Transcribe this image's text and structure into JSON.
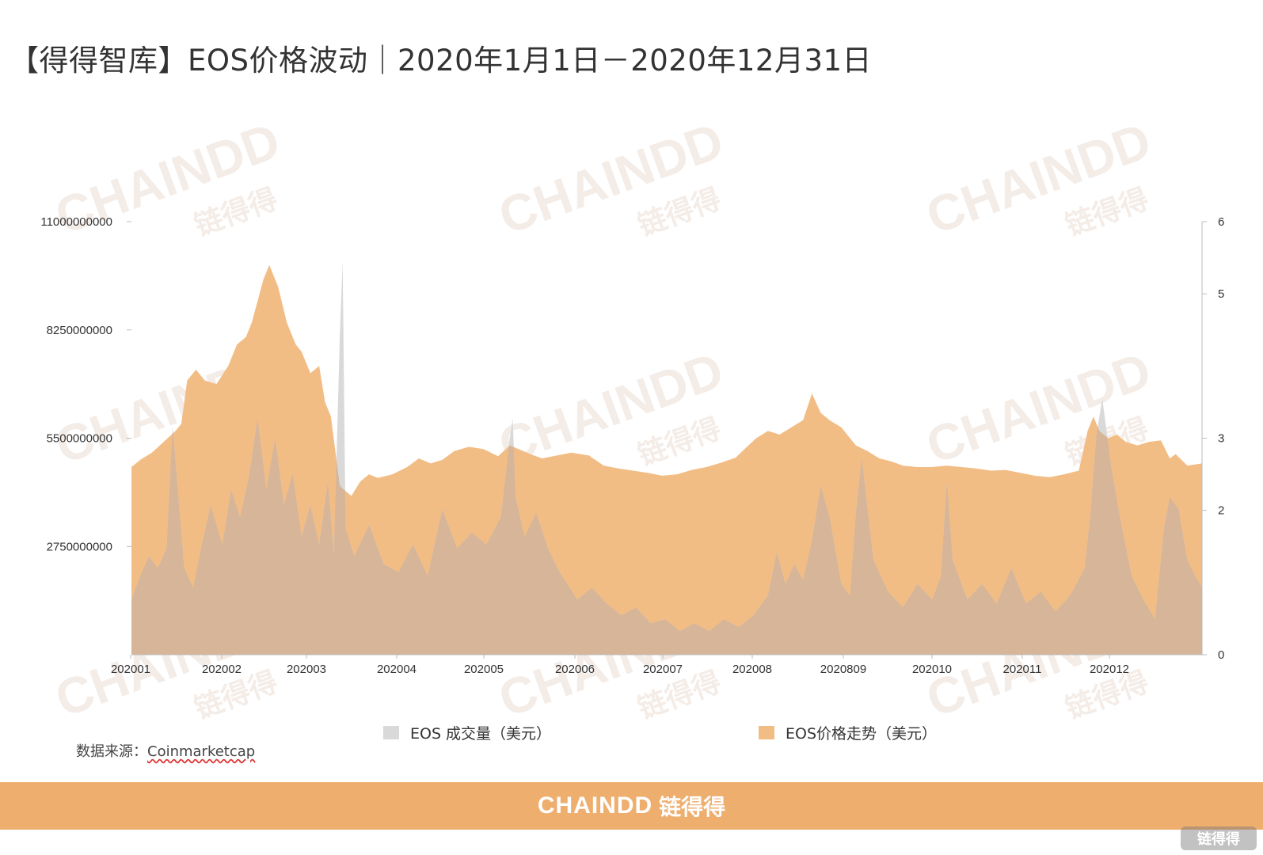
{
  "title": "【得得智库】EOS价格波动｜2020年1月1日－2020年12月31日",
  "source": {
    "label": "数据来源：",
    "name": "Coinmarketcap"
  },
  "footer": {
    "brand": "CHAINDD",
    "brand_cn": "链得得"
  },
  "corner_badge": "链得得",
  "watermark": {
    "latin": "CHAINDD",
    "cn": "链得得"
  },
  "colors": {
    "volume": "#d9d9d9",
    "price": "#f2bd85",
    "overlap": "#d6b598",
    "footer": "#eeae6e"
  },
  "chart_data": {
    "type": "area",
    "x_tick_labels": [
      "202001",
      "202002",
      "202003",
      "202004",
      "202005",
      "202006",
      "202007",
      "202008",
      "2020809",
      "202010",
      "202011",
      "202012"
    ],
    "y_left": {
      "min": 0,
      "max": 11000000000,
      "ticks": [
        "11000000000",
        "8250000000",
        "5500000000",
        "2750000000"
      ]
    },
    "y_right": {
      "min": 0,
      "max": 6,
      "ticks": [
        "6",
        "5",
        "3",
        "2",
        "0"
      ]
    },
    "legend": [
      {
        "label": "EOS 成交量（美元）",
        "color": "#d9d9d9"
      },
      {
        "label": "EOS价格走势（美元）",
        "color": "#f2bd85"
      }
    ],
    "legend_position": "bottom",
    "grid": false,
    "series": [
      {
        "name": "EOS价格走势（美元）",
        "axis": "right",
        "x": [
          "2020-01-01",
          "2020-01-04",
          "2020-01-08",
          "2020-01-12",
          "2020-01-16",
          "2020-01-18",
          "2020-01-20",
          "2020-01-23",
          "2020-01-26",
          "2020-01-30",
          "2020-02-03",
          "2020-02-06",
          "2020-02-09",
          "2020-02-11",
          "2020-02-13",
          "2020-02-15",
          "2020-02-17",
          "2020-02-20",
          "2020-02-23",
          "2020-02-26",
          "2020-02-28",
          "2020-03-02",
          "2020-03-05",
          "2020-03-07",
          "2020-03-09",
          "2020-03-12",
          "2020-03-13",
          "2020-03-16",
          "2020-03-19",
          "2020-03-22",
          "2020-03-25",
          "2020-03-30",
          "2020-04-04",
          "2020-04-08",
          "2020-04-12",
          "2020-04-16",
          "2020-04-20",
          "2020-04-25",
          "2020-04-30",
          "2020-05-05",
          "2020-05-09",
          "2020-05-12",
          "2020-05-16",
          "2020-05-20",
          "2020-05-25",
          "2020-05-30",
          "2020-06-05",
          "2020-06-10",
          "2020-06-15",
          "2020-06-20",
          "2020-06-25",
          "2020-06-30",
          "2020-07-05",
          "2020-07-10",
          "2020-07-15",
          "2020-07-20",
          "2020-07-25",
          "2020-07-28",
          "2020-08-01",
          "2020-08-05",
          "2020-08-09",
          "2020-08-13",
          "2020-08-17",
          "2020-08-20",
          "2020-08-23",
          "2020-08-26",
          "2020-08-30",
          "2020-09-02",
          "2020-09-04",
          "2020-09-08",
          "2020-09-12",
          "2020-09-16",
          "2020-09-20",
          "2020-09-25",
          "2020-09-30",
          "2020-10-05",
          "2020-10-10",
          "2020-10-15",
          "2020-10-20",
          "2020-10-25",
          "2020-10-30",
          "2020-11-04",
          "2020-11-09",
          "2020-11-14",
          "2020-11-19",
          "2020-11-22",
          "2020-11-24",
          "2020-11-26",
          "2020-11-29",
          "2020-12-02",
          "2020-12-05",
          "2020-12-09",
          "2020-12-13",
          "2020-12-17",
          "2020-12-20",
          "2020-12-22",
          "2020-12-26",
          "2020-12-31"
        ],
        "y": [
          2.6,
          2.7,
          2.8,
          2.95,
          3.1,
          3.2,
          3.8,
          3.95,
          3.8,
          3.75,
          4.0,
          4.3,
          4.4,
          4.6,
          4.9,
          5.2,
          5.4,
          5.1,
          4.6,
          4.3,
          4.2,
          3.9,
          4.0,
          3.5,
          3.3,
          2.35,
          2.3,
          2.2,
          2.4,
          2.5,
          2.45,
          2.5,
          2.6,
          2.72,
          2.65,
          2.7,
          2.82,
          2.88,
          2.85,
          2.75,
          2.9,
          2.85,
          2.78,
          2.72,
          2.76,
          2.8,
          2.76,
          2.62,
          2.58,
          2.55,
          2.52,
          2.48,
          2.5,
          2.56,
          2.6,
          2.66,
          2.73,
          2.85,
          3.0,
          3.1,
          3.05,
          3.15,
          3.25,
          3.62,
          3.35,
          3.25,
          3.15,
          3.0,
          2.9,
          2.82,
          2.72,
          2.68,
          2.62,
          2.6,
          2.6,
          2.62,
          2.6,
          2.58,
          2.55,
          2.56,
          2.52,
          2.48,
          2.46,
          2.5,
          2.55,
          3.1,
          3.3,
          3.1,
          3.0,
          3.05,
          2.95,
          2.9,
          2.95,
          2.97,
          2.72,
          2.78,
          2.62,
          2.65
        ]
      },
      {
        "name": "EOS 成交量（美元）",
        "axis": "left",
        "x": [
          "2020-01-01",
          "2020-01-04",
          "2020-01-07",
          "2020-01-10",
          "2020-01-13",
          "2020-01-15",
          "2020-01-17",
          "2020-01-19",
          "2020-01-22",
          "2020-01-25",
          "2020-01-28",
          "2020-02-01",
          "2020-02-04",
          "2020-02-07",
          "2020-02-10",
          "2020-02-13",
          "2020-02-16",
          "2020-02-19",
          "2020-02-22",
          "2020-02-25",
          "2020-02-28",
          "2020-03-02",
          "2020-03-05",
          "2020-03-08",
          "2020-03-10",
          "2020-03-12",
          "2020-03-13",
          "2020-03-14",
          "2020-03-17",
          "2020-03-22",
          "2020-03-27",
          "2020-04-01",
          "2020-04-06",
          "2020-04-11",
          "2020-04-16",
          "2020-04-21",
          "2020-04-26",
          "2020-05-01",
          "2020-05-06",
          "2020-05-09",
          "2020-05-10",
          "2020-05-11",
          "2020-05-14",
          "2020-05-18",
          "2020-05-22",
          "2020-05-26",
          "2020-06-01",
          "2020-06-06",
          "2020-06-11",
          "2020-06-16",
          "2020-06-21",
          "2020-06-26",
          "2020-07-01",
          "2020-07-06",
          "2020-07-11",
          "2020-07-16",
          "2020-07-21",
          "2020-07-26",
          "2020-07-31",
          "2020-08-05",
          "2020-08-08",
          "2020-08-11",
          "2020-08-14",
          "2020-08-17",
          "2020-08-20",
          "2020-08-23",
          "2020-08-26",
          "2020-08-30",
          "2020-09-02",
          "2020-09-04",
          "2020-09-06",
          "2020-09-10",
          "2020-09-15",
          "2020-09-20",
          "2020-09-25",
          "2020-09-30",
          "2020-10-03",
          "2020-10-05",
          "2020-10-07",
          "2020-10-12",
          "2020-10-17",
          "2020-10-22",
          "2020-10-27",
          "2020-11-01",
          "2020-11-06",
          "2020-11-11",
          "2020-11-16",
          "2020-11-21",
          "2020-11-23",
          "2020-11-25",
          "2020-11-27",
          "2020-11-30",
          "2020-12-03",
          "2020-12-07",
          "2020-12-11",
          "2020-12-15",
          "2020-12-18",
          "2020-12-20",
          "2020-12-23",
          "2020-12-26",
          "2020-12-28",
          "2020-12-31"
        ],
        "y": [
          1400000000,
          2000000000,
          2500000000,
          2200000000,
          2700000000,
          5800000000,
          4000000000,
          2200000000,
          1700000000,
          2800000000,
          3800000000,
          2800000000,
          4200000000,
          3500000000,
          4500000000,
          6000000000,
          4200000000,
          5500000000,
          3800000000,
          4600000000,
          3000000000,
          3800000000,
          2800000000,
          4400000000,
          2500000000,
          8000000000,
          10000000000,
          3200000000,
          2500000000,
          3300000000,
          2300000000,
          2100000000,
          2800000000,
          2000000000,
          3700000000,
          2700000000,
          3100000000,
          2800000000,
          3500000000,
          5500000000,
          6000000000,
          4000000000,
          3000000000,
          3600000000,
          2700000000,
          2100000000,
          1400000000,
          1700000000,
          1300000000,
          1000000000,
          1200000000,
          800000000,
          900000000,
          600000000,
          800000000,
          600000000,
          900000000,
          700000000,
          1000000000,
          1500000000,
          2600000000,
          1800000000,
          2300000000,
          1900000000,
          2900000000,
          4300000000,
          3500000000,
          1800000000,
          1500000000,
          3600000000,
          5000000000,
          2400000000,
          1600000000,
          1200000000,
          1800000000,
          1400000000,
          2000000000,
          4400000000,
          2400000000,
          1400000000,
          1800000000,
          1300000000,
          2200000000,
          1300000000,
          1600000000,
          1100000000,
          1500000000,
          2200000000,
          3600000000,
          5600000000,
          6500000000,
          4800000000,
          3500000000,
          2000000000,
          1400000000,
          900000000,
          3200000000,
          4000000000,
          3700000000,
          2400000000,
          2100000000,
          1700000000
        ]
      }
    ]
  }
}
